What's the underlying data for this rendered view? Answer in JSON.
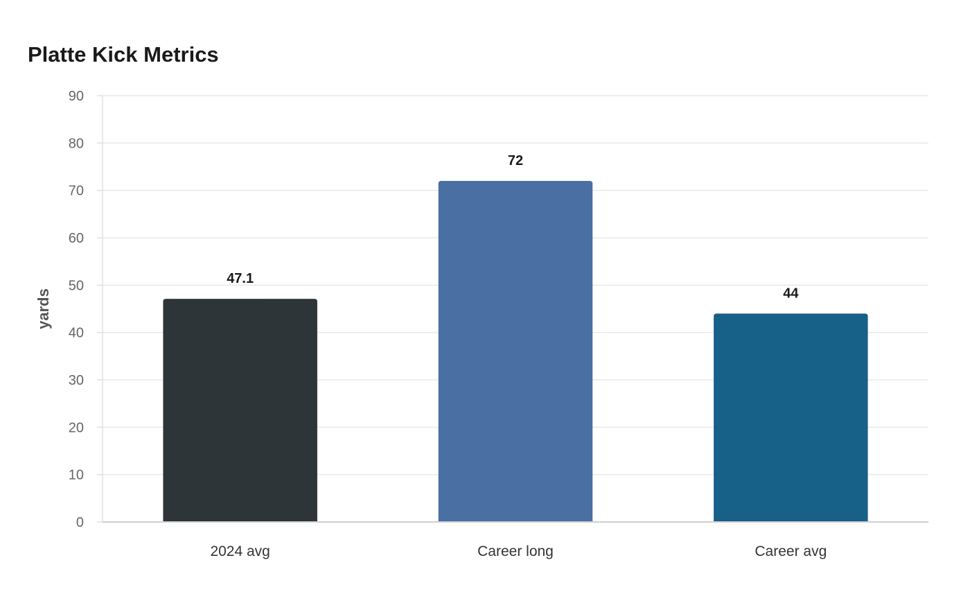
{
  "chart_data": {
    "type": "bar",
    "title": "Platte Kick Metrics",
    "xlabel": "",
    "ylabel": "yards",
    "categories": [
      "2024 avg",
      "Career long",
      "Career avg"
    ],
    "values": [
      47.1,
      72,
      44
    ],
    "value_labels": [
      "47.1",
      "72",
      "44"
    ],
    "colors": [
      "#2e3538",
      "#4a6fa3",
      "#176088"
    ],
    "ylim": [
      0,
      90
    ],
    "yticks": [
      0,
      10,
      20,
      30,
      40,
      50,
      60,
      70,
      80,
      90
    ],
    "grid": true,
    "legend": "none"
  }
}
